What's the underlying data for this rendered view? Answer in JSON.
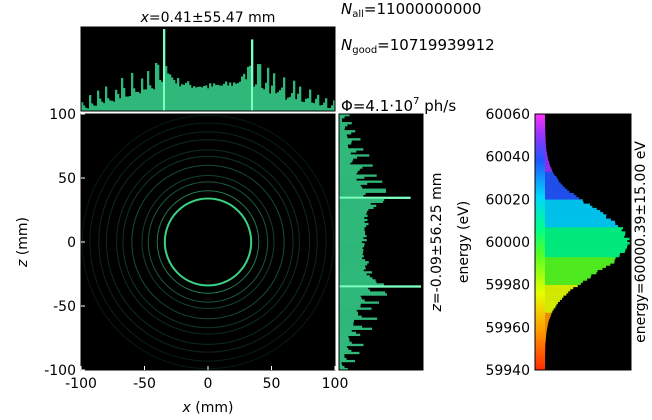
{
  "chart_data": {
    "type": "scatter",
    "description_free": true,
    "main": {
      "xlabel_var": "x",
      "xlabel_unit": "(mm)",
      "ylabel_var": "z",
      "ylabel_unit": "(mm)",
      "xlim": [
        -100,
        100
      ],
      "ylim": [
        -100,
        100
      ],
      "x_ticks": [
        "-100",
        "-50",
        "0",
        "50",
        "100"
      ],
      "y_ticks": [
        "100",
        "50",
        "0",
        "-50",
        "-100"
      ],
      "rings": [
        {
          "radius": 34,
          "intensity": 0.95
        },
        {
          "radius": 40,
          "intensity": 0.55
        },
        {
          "radius": 47,
          "intensity": 0.4
        },
        {
          "radius": 52,
          "intensity": 0.3
        },
        {
          "radius": 60,
          "intensity": 0.35
        },
        {
          "radius": 67,
          "intensity": 0.25
        },
        {
          "radius": 72,
          "intensity": 0.22
        },
        {
          "radius": 80,
          "intensity": 0.2
        },
        {
          "radius": 86,
          "intensity": 0.18
        },
        {
          "radius": 93,
          "intensity": 0.15
        },
        {
          "radius": 99,
          "intensity": 0.12
        }
      ],
      "ring_color": "#3ddc8c"
    },
    "top_hist": {
      "title_var": "x",
      "title_value": "0.41",
      "title_pm": "55.47",
      "title_unit": "mm"
    },
    "side_hist": {
      "label_var": "z",
      "label_value": "-0.09",
      "label_pm": "56.25",
      "label_unit": "mm"
    },
    "stats": {
      "n_all_sym": "N",
      "n_all_sub": "all",
      "n_all_value": "11000000000",
      "n_good_sym": "N",
      "n_good_sub": "good",
      "n_good_value": "10719939912",
      "flux_sym": "Φ",
      "flux_mantissa": "4.1",
      "flux_exp": "7",
      "flux_unit": "ph/s"
    },
    "energy": {
      "ylabel": "energy (eV)",
      "ylim": [
        59940,
        60060
      ],
      "ticks": [
        "60060",
        "60040",
        "60020",
        "60000",
        "59980",
        "59960",
        "59940"
      ],
      "mean": 60000.39,
      "sigma": 15.0,
      "side_label": "energy=60000.39±15.00 eV"
    }
  }
}
